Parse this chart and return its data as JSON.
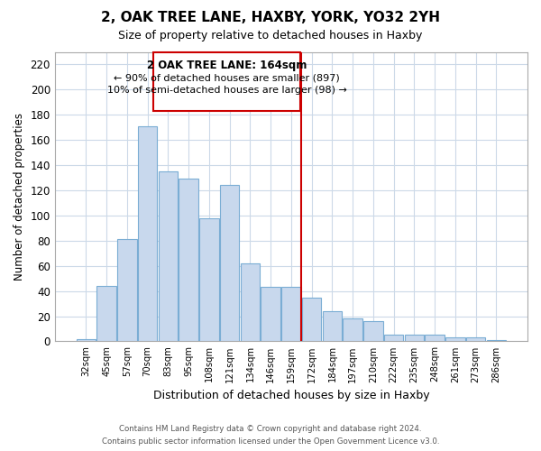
{
  "title": "2, OAK TREE LANE, HAXBY, YORK, YO32 2YH",
  "subtitle": "Size of property relative to detached houses in Haxby",
  "xlabel": "Distribution of detached houses by size in Haxby",
  "ylabel": "Number of detached properties",
  "bar_labels": [
    "32sqm",
    "45sqm",
    "57sqm",
    "70sqm",
    "83sqm",
    "95sqm",
    "108sqm",
    "121sqm",
    "134sqm",
    "146sqm",
    "159sqm",
    "172sqm",
    "184sqm",
    "197sqm",
    "210sqm",
    "222sqm",
    "235sqm",
    "248sqm",
    "261sqm",
    "273sqm",
    "286sqm"
  ],
  "bar_values": [
    2,
    44,
    81,
    171,
    135,
    129,
    98,
    124,
    62,
    43,
    43,
    35,
    24,
    18,
    16,
    5,
    5,
    5,
    3,
    3,
    1
  ],
  "bar_color": "#c8d8ed",
  "bar_edge_color": "#7aadd4",
  "vline_x": 10.5,
  "vline_color": "#cc0000",
  "annotation_title": "2 OAK TREE LANE: 164sqm",
  "annotation_line1": "← 90% of detached houses are smaller (897)",
  "annotation_line2": "10% of semi-detached houses are larger (98) →",
  "annotation_box_color": "#ffffff",
  "annotation_box_edge_color": "#cc0000",
  "ylim": [
    0,
    230
  ],
  "yticks": [
    0,
    20,
    40,
    60,
    80,
    100,
    120,
    140,
    160,
    180,
    200,
    220
  ],
  "footer_line1": "Contains HM Land Registry data © Crown copyright and database right 2024.",
  "footer_line2": "Contains public sector information licensed under the Open Government Licence v3.0.",
  "background_color": "#ffffff",
  "grid_color": "#ccd9e8"
}
